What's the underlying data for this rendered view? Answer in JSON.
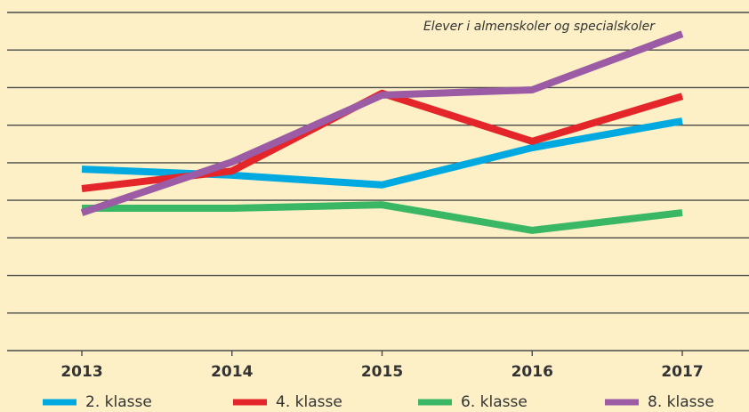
{
  "chart_data": {
    "type": "line",
    "annotation": "Elever i almenskoler og specialskoler",
    "categories": [
      "2013",
      "2014",
      "2015",
      "2016",
      "2017"
    ],
    "series": [
      {
        "name": "2. klasse",
        "color": "#00a9e0",
        "values": [
          4.83,
          4.67,
          4.41,
          5.4,
          6.11
        ]
      },
      {
        "name": "4. klasse",
        "color": "#e4262a",
        "values": [
          4.31,
          4.78,
          6.85,
          5.57,
          6.77
        ]
      },
      {
        "name": "6. klasse",
        "color": "#3ab764",
        "values": [
          3.79,
          3.79,
          3.88,
          3.2,
          3.67
        ]
      },
      {
        "name": "8. klasse",
        "color": "#9b5ba5",
        "values": [
          3.67,
          5.02,
          6.8,
          6.94,
          8.43
        ]
      }
    ],
    "ylim": [
      0,
      9
    ],
    "yticks": [
      0,
      1,
      2,
      3,
      4,
      5,
      6,
      7,
      8,
      9
    ],
    "grid": true
  }
}
